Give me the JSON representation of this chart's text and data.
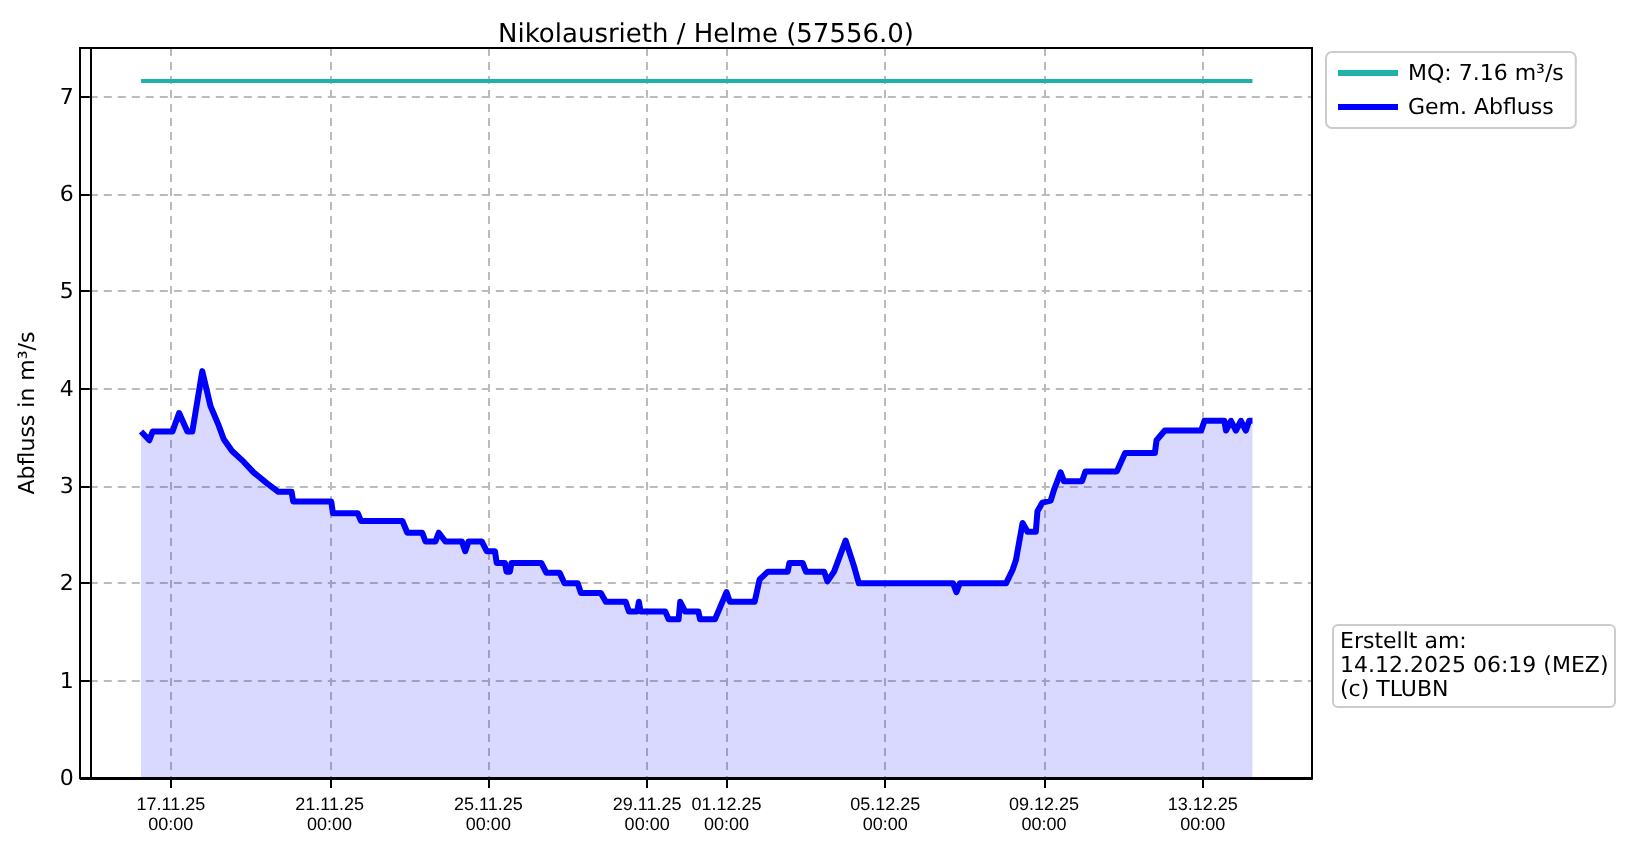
{
  "chart_data": {
    "type": "line",
    "title": "Nikolausrieth / Helme (57556.0)",
    "ylabel": "Abfluss in m³/s",
    "annotations": [
      "Erstellt am:\n14.12.2025 06:19 (MEZ)\n(c) TLUBN"
    ],
    "xlim": [
      "2025-11-14T23:00",
      "2025-12-15T18:00"
    ],
    "xticks": [
      {
        "value": "2025-11-17",
        "label": "17.11.25\n00:00"
      },
      {
        "value": "2025-11-21",
        "label": "21.11.25\n00:00"
      },
      {
        "value": "2025-11-25",
        "label": "25.11.25\n00:00"
      },
      {
        "value": "2025-11-29",
        "label": "29.11.25\n00:00"
      },
      {
        "value": "2025-12-01",
        "label": "01.12.25\n00:00"
      },
      {
        "value": "2025-12-05",
        "label": "05.12.25\n00:00"
      },
      {
        "value": "2025-12-09",
        "label": "09.12.25\n00:00"
      },
      {
        "value": "2025-12-13",
        "label": "13.12.25\n00:00"
      }
    ],
    "ylim": [
      0,
      7.5
    ],
    "yticks": [
      0,
      1,
      2,
      3,
      4,
      5,
      6,
      7
    ],
    "grid": true,
    "legend": "top right",
    "marker": "none",
    "series": [
      {
        "name": "MQ: 7.16 m³/s",
        "type": "line",
        "color": "#20b2aa",
        "x": [
          "2025-11-16T06:00",
          "2025-12-14T06:00"
        ],
        "values": [
          7.16,
          7.16
        ]
      },
      {
        "name": "Gem. Abfluss",
        "type": "area",
        "color": "#0000ff",
        "x": [
          "2025-11-16T06:00",
          "2025-11-16T11:00",
          "2025-11-16T13:00",
          "2025-11-17T01:00",
          "2025-11-17T05:00",
          "2025-11-17T10:00",
          "2025-11-17T13:00",
          "2025-11-17T19:00",
          "2025-11-18T00:00",
          "2025-11-18T05:00",
          "2025-11-18T08:00",
          "2025-11-18T13:00",
          "2025-11-18T20:00",
          "2025-11-19T02:00",
          "2025-11-19T10:00",
          "2025-11-19T17:00",
          "2025-11-20T01:00",
          "2025-11-20T02:00",
          "2025-11-21T01:00",
          "2025-11-21T02:00",
          "2025-11-21T17:00",
          "2025-11-21T19:00",
          "2025-11-22T20:00",
          "2025-11-22T23:00",
          "2025-11-23T08:00",
          "2025-11-23T10:00",
          "2025-11-23T16:00",
          "2025-11-23T18:00",
          "2025-11-23T22:00",
          "2025-11-24T08:00",
          "2025-11-24T10:00",
          "2025-11-24T12:00",
          "2025-11-24T20:00",
          "2025-11-24T23:00",
          "2025-11-25T04:00",
          "2025-11-25T05:00",
          "2025-11-25T10:00",
          "2025-11-25T11:00",
          "2025-11-25T13:00",
          "2025-11-25T14:00",
          "2025-11-26T08:00",
          "2025-11-26T11:00",
          "2025-11-26T19:00",
          "2025-11-26T22:00",
          "2025-11-27T06:00",
          "2025-11-27T08:00",
          "2025-11-27T20:00",
          "2025-11-27T23:00",
          "2025-11-28T11:00",
          "2025-11-28T13:00",
          "2025-11-28T18:00",
          "2025-11-28T19:00",
          "2025-11-28T20:00",
          "2025-11-29T11:00",
          "2025-11-29T13:00",
          "2025-11-29T19:00",
          "2025-11-29T20:00",
          "2025-11-29T23:00",
          "2025-11-30T07:00",
          "2025-11-30T08:00",
          "2025-11-30T17:00",
          "2025-12-01T00:00",
          "2025-12-01T02:00",
          "2025-12-01T17:00",
          "2025-12-01T20:00",
          "2025-12-02T01:00",
          "2025-12-02T13:00",
          "2025-12-02T14:00",
          "2025-12-02T22:00",
          "2025-12-03T00:00",
          "2025-12-03T11:00",
          "2025-12-03T13:00",
          "2025-12-03T17:00",
          "2025-12-03T19:00",
          "2025-12-04T00:00",
          "2025-12-04T05:00",
          "2025-12-04T08:00",
          "2025-12-06T17:00",
          "2025-12-06T19:00",
          "2025-12-06T21:00",
          "2025-12-08T01:00",
          "2025-12-08T05:00",
          "2025-12-08T07:00",
          "2025-12-08T11:00",
          "2025-12-08T14:00",
          "2025-12-08T19:00",
          "2025-12-08T20:00",
          "2025-12-08T23:00",
          "2025-12-09T04:00",
          "2025-12-09T06:00",
          "2025-12-09T10:00",
          "2025-12-09T12:00",
          "2025-12-09T23:00",
          "2025-12-10T01:00",
          "2025-12-10T20:00",
          "2025-12-11T01:00",
          "2025-12-11T19:00",
          "2025-12-11T20:00",
          "2025-12-12T01:00",
          "2025-12-12T23:00",
          "2025-12-13T01:00",
          "2025-12-13T13:00",
          "2025-12-13T14:00",
          "2025-12-13T17:00",
          "2025-12-13T20:00",
          "2025-12-13T23:00",
          "2025-12-14T02:00",
          "2025-12-14T04:00",
          "2025-12-14T06:00"
        ],
        "values": [
          3.56,
          3.47,
          3.56,
          3.56,
          3.75,
          3.56,
          3.56,
          4.18,
          3.82,
          3.62,
          3.48,
          3.36,
          3.25,
          3.14,
          3.03,
          2.94,
          2.94,
          2.84,
          2.84,
          2.72,
          2.72,
          2.64,
          2.64,
          2.52,
          2.52,
          2.43,
          2.43,
          2.52,
          2.43,
          2.43,
          2.33,
          2.43,
          2.43,
          2.33,
          2.33,
          2.21,
          2.21,
          2.12,
          2.12,
          2.21,
          2.21,
          2.11,
          2.11,
          2.0,
          2.0,
          1.9,
          1.9,
          1.81,
          1.81,
          1.71,
          1.71,
          1.81,
          1.71,
          1.71,
          1.63,
          1.63,
          1.81,
          1.71,
          1.71,
          1.63,
          1.63,
          1.91,
          1.81,
          1.81,
          2.04,
          2.12,
          2.12,
          2.21,
          2.21,
          2.12,
          2.12,
          2.02,
          2.12,
          2.21,
          2.44,
          2.18,
          2.0,
          2.0,
          1.91,
          2.0,
          2.0,
          2.14,
          2.24,
          2.62,
          2.53,
          2.53,
          2.74,
          2.83,
          2.85,
          2.96,
          3.14,
          3.05,
          3.05,
          3.15,
          3.15,
          3.34,
          3.34,
          3.47,
          3.57,
          3.57,
          3.67,
          3.67,
          3.57,
          3.67,
          3.57,
          3.67,
          3.57,
          3.67,
          3.67
        ]
      }
    ]
  }
}
